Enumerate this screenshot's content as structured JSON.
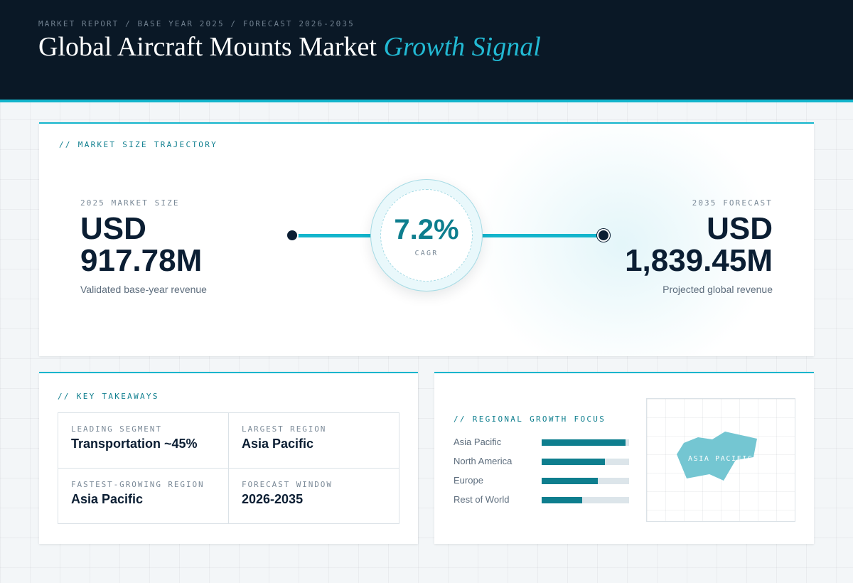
{
  "header": {
    "breadcrumb": "MARKET REPORT / BASE YEAR 2025 / FORECAST 2026-2035",
    "title_main": "Global Aircraft Mounts Market",
    "title_accent": "Growth Signal"
  },
  "trajectory": {
    "section_label": "// MARKET SIZE TRAJECTORY",
    "base": {
      "label": "2025 MARKET SIZE",
      "currency": "USD",
      "value": "917.78M",
      "caption": "Validated base-year revenue"
    },
    "forecast": {
      "label": "2035 FORECAST",
      "currency": "USD",
      "value": "1,839.45M",
      "caption": "Projected global revenue"
    },
    "cagr": {
      "value": "7.2%",
      "label": "CAGR"
    }
  },
  "takeaways": {
    "section_label": "// KEY TAKEAWAYS",
    "items": [
      {
        "label": "LEADING SEGMENT",
        "value": "Transportation ~45%"
      },
      {
        "label": "LARGEST REGION",
        "value": "Asia Pacific"
      },
      {
        "label": "FASTEST-GROWING REGION",
        "value": "Asia Pacific"
      },
      {
        "label": "FORECAST WINDOW",
        "value": "2026-2035"
      }
    ]
  },
  "regional": {
    "section_label": "// REGIONAL GROWTH FOCUS",
    "bars": [
      {
        "name": "Asia Pacific",
        "fill": 0.96
      },
      {
        "name": "North America",
        "fill": 0.72
      },
      {
        "name": "Europe",
        "fill": 0.64
      },
      {
        "name": "Rest of World",
        "fill": 0.46
      }
    ],
    "map_label": "ASIA PACIFIC"
  },
  "colors": {
    "accent": "#13b5cc",
    "teal": "#0e7e8e",
    "navy": "#0a1826",
    "ink": "#0b1e33"
  }
}
